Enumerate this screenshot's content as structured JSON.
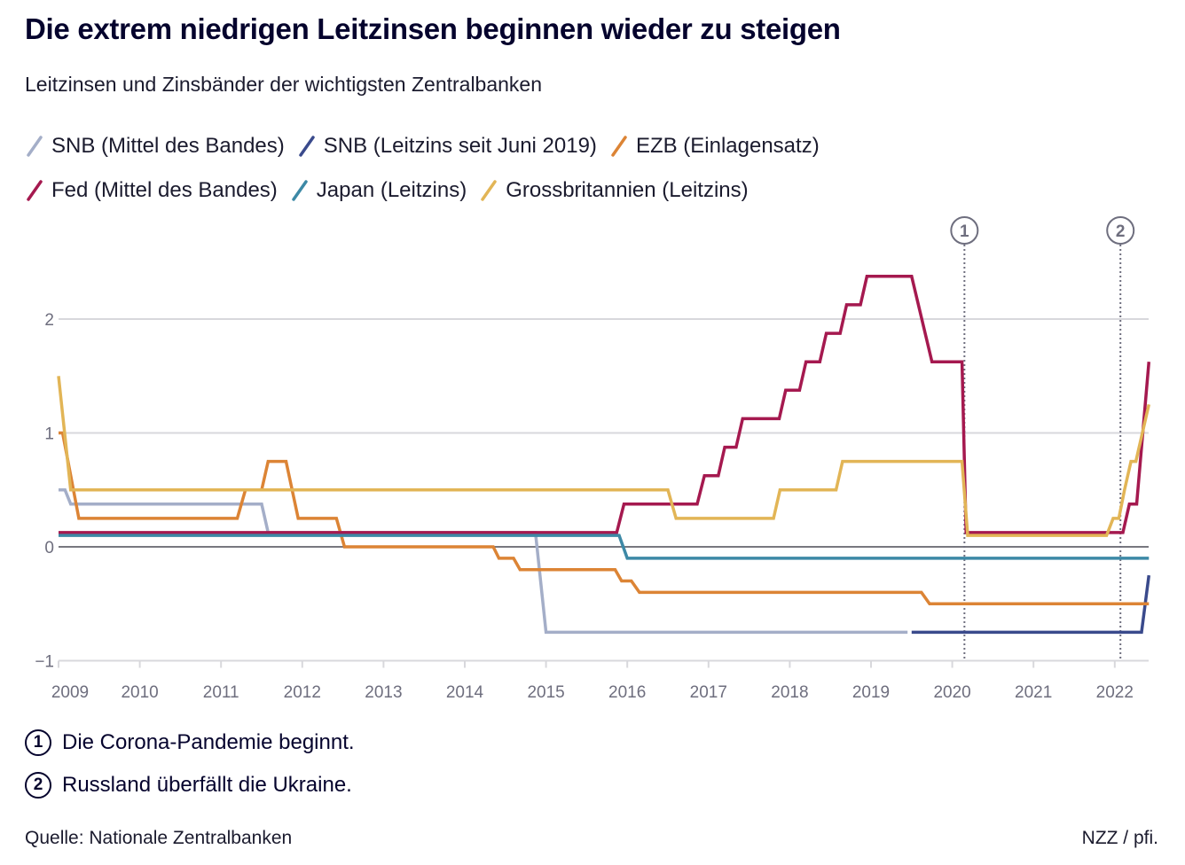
{
  "header": {
    "title": "Die extrem niedrigen Leitzinsen beginnen wieder zu steigen",
    "subtitle": "Leitzinsen und Zinsbänder der wichtigsten Zentralbanken"
  },
  "legend": [
    {
      "label": "SNB (Mittel des Bandes)",
      "color": "#a4aec8"
    },
    {
      "label": "SNB (Leitzins seit Juni 2019)",
      "color": "#3a4a8c"
    },
    {
      "label": "EZB (Einlagensatz)",
      "color": "#dc8435"
    },
    {
      "label": "Fed (Mittel des Bandes)",
      "color": "#a5194f"
    },
    {
      "label": "Japan (Leitzins)",
      "color": "#3d89a6"
    },
    {
      "label": "Grossbritannien (Leitzins)",
      "color": "#e2b556"
    }
  ],
  "notes": [
    {
      "marker": "1",
      "text": "Die Corona-Pandemie beginnt."
    },
    {
      "marker": "2",
      "text": "Russland überfällt die Ukraine."
    }
  ],
  "footer": {
    "source": "Quelle: Nationale Zentralbanken",
    "credit": "NZZ / pfi."
  },
  "chart_data": {
    "type": "line",
    "title": "Die extrem niedrigen Leitzinsen beginnen wieder zu steigen",
    "subtitle": "Leitzinsen und Zinsbänder der wichtigsten Zentralbanken",
    "xlabel": "",
    "ylabel": "",
    "xlim": [
      2009.0,
      2022.42
    ],
    "ylim": [
      -1,
      2.5
    ],
    "grid": true,
    "legend_position": "top",
    "x_ticks": [
      2009,
      2010,
      2011,
      2012,
      2013,
      2014,
      2015,
      2016,
      2017,
      2018,
      2019,
      2020,
      2021,
      2022
    ],
    "x_tick_labels": [
      "2009",
      "2010",
      "2011",
      "2012",
      "2013",
      "2014",
      "2015",
      "2016",
      "2017",
      "2018",
      "2019",
      "2020",
      "2021",
      "2022"
    ],
    "y_ticks": [
      -1,
      0,
      1,
      2
    ],
    "y_tick_labels": [
      "−1",
      "0",
      "1",
      "2"
    ],
    "annotations": [
      {
        "marker": "1",
        "x": 2020.15,
        "text": "Die Corona-Pandemie beginnt."
      },
      {
        "marker": "2",
        "x": 2022.07,
        "text": "Russland überfällt die Ukraine."
      }
    ],
    "series": [
      {
        "name": "SNB (Mittel des Bandes)",
        "color": "#a4aec8",
        "points": [
          [
            2009.0,
            0.5
          ],
          [
            2009.08,
            0.5
          ],
          [
            2009.15,
            0.375
          ],
          [
            2011.5,
            0.375
          ],
          [
            2011.58,
            0.125
          ],
          [
            2014.87,
            0.125
          ],
          [
            2015.0,
            -0.75
          ],
          [
            2019.45,
            -0.75
          ]
        ]
      },
      {
        "name": "SNB (Leitzins seit Juni 2019)",
        "color": "#3a4a8c",
        "points": [
          [
            2019.5,
            -0.75
          ],
          [
            2022.33,
            -0.75
          ],
          [
            2022.42,
            -0.25
          ]
        ]
      },
      {
        "name": "EZB (Einlagensatz)",
        "color": "#dc8435",
        "points": [
          [
            2009.0,
            1.0
          ],
          [
            2009.05,
            1.0
          ],
          [
            2009.25,
            0.25
          ],
          [
            2011.2,
            0.25
          ],
          [
            2011.3,
            0.5
          ],
          [
            2011.5,
            0.5
          ],
          [
            2011.58,
            0.75
          ],
          [
            2011.8,
            0.75
          ],
          [
            2011.95,
            0.25
          ],
          [
            2012.42,
            0.25
          ],
          [
            2012.52,
            0.0
          ],
          [
            2014.35,
            0.0
          ],
          [
            2014.42,
            -0.1
          ],
          [
            2014.6,
            -0.1
          ],
          [
            2014.68,
            -0.2
          ],
          [
            2015.85,
            -0.2
          ],
          [
            2015.93,
            -0.3
          ],
          [
            2016.05,
            -0.3
          ],
          [
            2016.15,
            -0.4
          ],
          [
            2019.62,
            -0.4
          ],
          [
            2019.72,
            -0.5
          ],
          [
            2022.42,
            -0.5
          ]
        ]
      },
      {
        "name": "Fed (Mittel des Bandes)",
        "color": "#a5194f",
        "points": [
          [
            2009.0,
            0.125
          ],
          [
            2015.87,
            0.125
          ],
          [
            2015.96,
            0.375
          ],
          [
            2016.86,
            0.375
          ],
          [
            2016.95,
            0.625
          ],
          [
            2017.12,
            0.625
          ],
          [
            2017.2,
            0.875
          ],
          [
            2017.34,
            0.875
          ],
          [
            2017.42,
            1.125
          ],
          [
            2017.87,
            1.125
          ],
          [
            2017.95,
            1.375
          ],
          [
            2018.12,
            1.375
          ],
          [
            2018.2,
            1.625
          ],
          [
            2018.37,
            1.625
          ],
          [
            2018.45,
            1.875
          ],
          [
            2018.62,
            1.875
          ],
          [
            2018.7,
            2.125
          ],
          [
            2018.87,
            2.125
          ],
          [
            2018.95,
            2.375
          ],
          [
            2019.5,
            2.375
          ],
          [
            2019.75,
            1.625
          ],
          [
            2020.12,
            1.625
          ],
          [
            2020.17,
            0.125
          ],
          [
            2022.1,
            0.125
          ],
          [
            2022.18,
            0.375
          ],
          [
            2022.27,
            0.375
          ],
          [
            2022.42,
            1.625
          ]
        ]
      },
      {
        "name": "Japan (Leitzins)",
        "color": "#3d89a6",
        "points": [
          [
            2009.0,
            0.1
          ],
          [
            2015.9,
            0.1
          ],
          [
            2016.0,
            -0.1
          ],
          [
            2022.42,
            -0.1
          ]
        ]
      },
      {
        "name": "Grossbritannien (Leitzins)",
        "color": "#e2b556",
        "points": [
          [
            2009.0,
            1.5
          ],
          [
            2009.15,
            0.5
          ],
          [
            2016.5,
            0.5
          ],
          [
            2016.6,
            0.25
          ],
          [
            2017.8,
            0.25
          ],
          [
            2017.88,
            0.5
          ],
          [
            2018.57,
            0.5
          ],
          [
            2018.65,
            0.75
          ],
          [
            2020.12,
            0.75
          ],
          [
            2020.19,
            0.1
          ],
          [
            2021.9,
            0.1
          ],
          [
            2021.98,
            0.25
          ],
          [
            2022.05,
            0.25
          ],
          [
            2022.12,
            0.5
          ],
          [
            2022.2,
            0.75
          ],
          [
            2022.26,
            0.75
          ],
          [
            2022.42,
            1.25
          ]
        ]
      }
    ]
  }
}
